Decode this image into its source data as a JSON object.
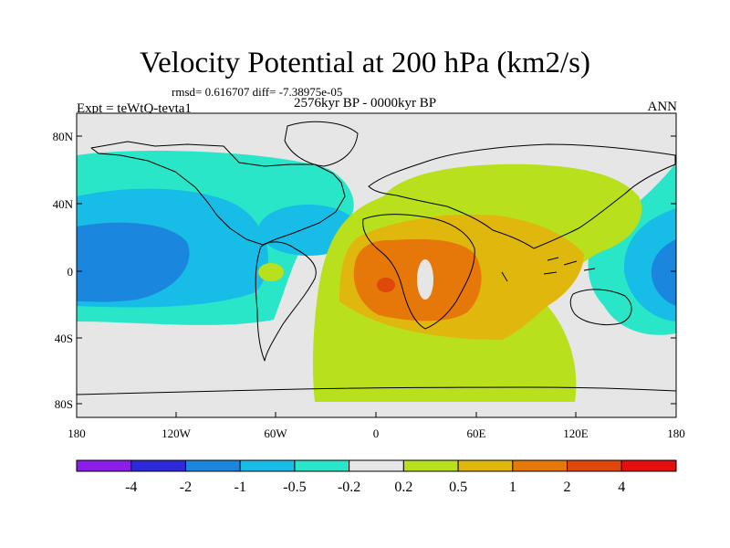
{
  "title": "Velocity Potential at 200 hPa (km2/s)",
  "stats": "rmsd= 0.616707 diff= -7.38975e-05",
  "period": "2576kyr BP - 0000kyr BP",
  "experiment": "Expt = teWtQ-tevta1",
  "season": "ANN",
  "map": {
    "lat_labels": [
      "80N",
      "40N",
      "0",
      "40S",
      "80S"
    ],
    "lon_labels": [
      "180",
      "120W",
      "60W",
      "0",
      "60E",
      "120E",
      "180"
    ]
  },
  "colorbar": {
    "colors": [
      "#8c1ce8",
      "#2e2ad9",
      "#1b86de",
      "#17bde6",
      "#2ae6c8",
      "#e6e6e6",
      "#b8e01c",
      "#e0b80d",
      "#e6780a",
      "#e0470a",
      "#e60f0f"
    ],
    "labels": [
      "-4",
      "-2",
      "-1",
      "-0.5",
      "-0.2",
      "0.2",
      "0.5",
      "1",
      "2",
      "4"
    ]
  }
}
